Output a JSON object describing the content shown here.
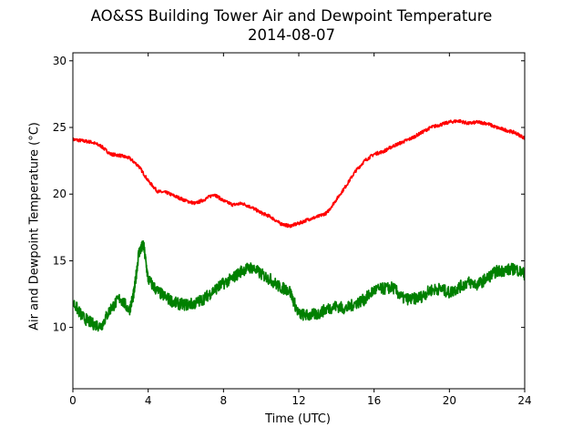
{
  "chart_data": {
    "type": "line",
    "title": "AO&SS Building Tower Air and Dewpoint Temperature",
    "subtitle": "2014-08-07",
    "xlabel": "Time (UTC)",
    "ylabel": "Air and Dewpoint Temperature (°C)",
    "xlim": [
      0,
      24
    ],
    "ylim": [
      5.4,
      30.6
    ],
    "xticks": [
      0,
      4,
      8,
      12,
      16,
      20,
      24
    ],
    "yticks": [
      10,
      15,
      20,
      25,
      30
    ],
    "grid": false,
    "series": [
      {
        "color": "#ff0000",
        "x": [
          0,
          0.5,
          1,
          1.5,
          2,
          2.5,
          3,
          3.5,
          4,
          4.5,
          5,
          5.5,
          6,
          6.5,
          7,
          7.5,
          8,
          8.5,
          9,
          9.5,
          10,
          10.5,
          11,
          11.5,
          12,
          12.5,
          13,
          13.5,
          14,
          14.5,
          15,
          15.5,
          16,
          16.5,
          17,
          17.5,
          18,
          18.5,
          19,
          19.5,
          20,
          20.5,
          21,
          21.5,
          22,
          22.5,
          23,
          23.5,
          24
        ],
        "values": [
          24.1,
          24.0,
          23.9,
          23.6,
          23.0,
          22.9,
          22.7,
          22.1,
          21.0,
          20.2,
          20.1,
          19.8,
          19.5,
          19.3,
          19.6,
          20.0,
          19.5,
          19.2,
          19.3,
          19.0,
          18.6,
          18.3,
          17.8,
          17.6,
          17.8,
          18.1,
          18.3,
          18.6,
          19.6,
          20.6,
          21.7,
          22.5,
          23.0,
          23.2,
          23.6,
          23.9,
          24.2,
          24.6,
          25.0,
          25.2,
          25.4,
          25.5,
          25.3,
          25.4,
          25.3,
          25.0,
          24.8,
          24.6,
          24.2
        ]
      },
      {
        "color": "#008000",
        "x": [
          0,
          0.5,
          1,
          1.5,
          2,
          2.5,
          3,
          3.25,
          3.5,
          3.75,
          4,
          4.5,
          5,
          5.5,
          6,
          6.5,
          7,
          7.5,
          8,
          8.5,
          9,
          9.5,
          10,
          10.5,
          11,
          11.5,
          12,
          12.5,
          13,
          13.5,
          14,
          14.5,
          15,
          15.5,
          16,
          16.5,
          17,
          17.5,
          18,
          18.5,
          19,
          19.5,
          20,
          20.5,
          21,
          21.5,
          22,
          22.5,
          23,
          23.5,
          24
        ],
        "values": [
          11.9,
          10.8,
          10.3,
          10.1,
          11.4,
          12.2,
          11.3,
          12.6,
          15.6,
          16.2,
          13.6,
          12.7,
          12.2,
          11.8,
          11.7,
          11.8,
          12.2,
          12.8,
          13.3,
          13.7,
          14.3,
          14.5,
          14.0,
          13.6,
          13.0,
          12.8,
          11.0,
          10.9,
          11.0,
          11.4,
          11.6,
          11.4,
          11.8,
          12.1,
          12.8,
          12.9,
          13.0,
          12.2,
          12.1,
          12.3,
          12.8,
          12.9,
          12.6,
          13.0,
          13.4,
          13.2,
          13.7,
          14.2,
          14.3,
          14.4,
          14.0
        ]
      }
    ]
  }
}
